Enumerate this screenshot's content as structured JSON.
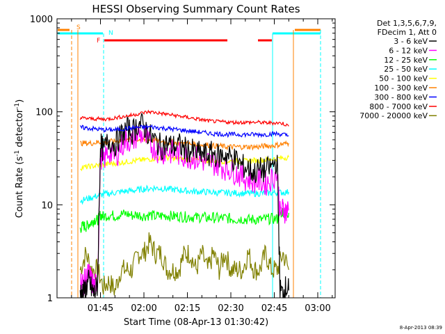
{
  "chart_data": {
    "type": "line",
    "title": "HESSI Observing Summary Count Rates",
    "xlabel": "Start Time (08-Apr-13 01:30:42)",
    "ylabel_main": "Count Rate (s",
    "ylabel_sup1": "-1",
    "ylabel_mid": " detector",
    "ylabel_sup2": "-1",
    "ylabel_end": ")",
    "y_scale": "log",
    "ylim": [
      1,
      1000
    ],
    "xlim_minutes_after_0130": [
      0,
      96
    ],
    "x_ticks": [
      {
        "label": "01:45",
        "minutes": 15
      },
      {
        "label": "02:00",
        "minutes": 30
      },
      {
        "label": "02:15",
        "minutes": 45
      },
      {
        "label": "02:30",
        "minutes": 60
      },
      {
        "label": "02:45",
        "minutes": 75
      },
      {
        "label": "03:00",
        "minutes": 90
      }
    ],
    "y_ticks": [
      {
        "label": "1",
        "value": 1
      },
      {
        "label": "10",
        "value": 10
      },
      {
        "label": "100",
        "value": 100
      },
      {
        "label": "1000",
        "value": 1000
      }
    ],
    "legend_header": [
      "Det 1,3,5,6,7,9,",
      "FDecim 1, Att 0"
    ],
    "legend_placement": "right",
    "series": [
      {
        "name": "3 - 6 keV",
        "color": "#000000",
        "x": [
          8,
          9,
          10,
          11,
          12,
          13,
          14,
          15,
          16,
          18,
          20,
          22,
          24,
          26,
          28,
          30,
          32,
          34,
          36,
          38,
          40,
          42,
          44,
          46,
          48,
          50,
          52,
          54,
          56,
          58,
          60,
          62,
          64,
          66,
          68,
          70,
          72,
          74,
          76,
          77,
          78,
          79,
          80
        ],
        "y": [
          1.2,
          1.1,
          1.3,
          1.5,
          1.2,
          1.1,
          1.4,
          45,
          38,
          50,
          45,
          55,
          65,
          60,
          75,
          70,
          55,
          48,
          42,
          45,
          42,
          44,
          40,
          38,
          36,
          35,
          34,
          36,
          33,
          35,
          32,
          30,
          26,
          25,
          22,
          24,
          23,
          26,
          30,
          1.2,
          1.1,
          1.3,
          1.2
        ]
      },
      {
        "name": "6 - 12 keV",
        "color": "#ff00ff",
        "x": [
          8,
          9,
          10,
          11,
          12,
          13,
          14,
          15,
          16,
          18,
          20,
          22,
          24,
          26,
          28,
          30,
          32,
          34,
          36,
          38,
          40,
          42,
          44,
          46,
          48,
          50,
          52,
          54,
          56,
          58,
          60,
          62,
          64,
          66,
          68,
          70,
          72,
          74,
          76,
          77,
          78,
          79,
          80
        ],
        "y": [
          1.5,
          1.4,
          1.6,
          1.8,
          1.5,
          1.3,
          1.6,
          35,
          30,
          38,
          32,
          42,
          50,
          48,
          58,
          55,
          45,
          40,
          36,
          38,
          36,
          35,
          34,
          33,
          32,
          30,
          29,
          28,
          27,
          25,
          24,
          22,
          20,
          19,
          18,
          18,
          17,
          19,
          22,
          8,
          9,
          8.5,
          9
        ]
      },
      {
        "name": "12 - 25 keV",
        "color": "#00ff00",
        "x": [
          8,
          9,
          10,
          11,
          12,
          13,
          14,
          15,
          16,
          18,
          20,
          22,
          24,
          26,
          28,
          30,
          32,
          34,
          36,
          38,
          40,
          42,
          44,
          46,
          48,
          50,
          52,
          54,
          56,
          58,
          60,
          62,
          64,
          66,
          68,
          70,
          72,
          74,
          76,
          77,
          78,
          79,
          80
        ],
        "y": [
          5.5,
          6,
          5.8,
          6.2,
          6.5,
          7,
          6.8,
          7.8,
          7.5,
          7.8,
          7.6,
          7.9,
          8,
          7.7,
          7.8,
          7.6,
          7.8,
          7.5,
          7.6,
          7.7,
          7.5,
          7.6,
          7.4,
          7.5,
          7.3,
          7.4,
          7.2,
          7.3,
          7.1,
          7.2,
          7.1,
          7,
          7.1,
          6.9,
          7,
          6.9,
          7,
          7.1,
          7,
          8,
          8.5,
          8,
          8.2
        ]
      },
      {
        "name": "25 - 50 keV",
        "color": "#00ffff",
        "x": [
          8,
          10,
          12,
          14,
          16,
          18,
          20,
          22,
          24,
          26,
          28,
          30,
          32,
          34,
          36,
          38,
          40,
          42,
          44,
          46,
          48,
          50,
          52,
          54,
          56,
          58,
          60,
          62,
          64,
          66,
          68,
          70,
          72,
          74,
          76,
          78,
          80
        ],
        "y": [
          11,
          11.5,
          12,
          12.5,
          13,
          13.2,
          13.5,
          13.8,
          14,
          14.2,
          14.5,
          14.8,
          15,
          15.2,
          15,
          14.8,
          14.6,
          14.4,
          14.2,
          14,
          13.9,
          13.8,
          13.7,
          13.6,
          13.5,
          13.5,
          13.4,
          13.4,
          13.3,
          13.3,
          13.2,
          13.3,
          13.3,
          13.4,
          13.5,
          13.6,
          13.7
        ]
      },
      {
        "name": "50 - 100 keV",
        "color": "#ffff00",
        "x": [
          8,
          10,
          12,
          14,
          16,
          18,
          20,
          22,
          24,
          26,
          28,
          30,
          32,
          34,
          36,
          38,
          40,
          42,
          44,
          46,
          48,
          50,
          52,
          54,
          56,
          58,
          60,
          62,
          64,
          66,
          68,
          70,
          72,
          74,
          76,
          78,
          80
        ],
        "y": [
          25,
          25.5,
          26,
          26.5,
          27,
          27.5,
          28,
          28.5,
          29,
          29.5,
          30,
          30.5,
          31,
          31.5,
          32,
          32,
          31.5,
          31,
          31,
          30.5,
          30.5,
          30,
          30,
          30,
          29.5,
          29.5,
          29.5,
          29.5,
          29.5,
          29.5,
          30,
          30,
          30.5,
          31,
          31.5,
          32,
          32.5
        ]
      },
      {
        "name": "100 - 300 keV",
        "color": "#ff8000",
        "x": [
          8,
          10,
          12,
          14,
          16,
          18,
          20,
          22,
          24,
          26,
          28,
          30,
          32,
          34,
          36,
          38,
          40,
          42,
          44,
          46,
          48,
          50,
          52,
          54,
          56,
          58,
          60,
          62,
          64,
          66,
          68,
          70,
          72,
          74,
          76,
          78,
          80
        ],
        "y": [
          46,
          46,
          46,
          47,
          47,
          48,
          48,
          49,
          49,
          50,
          50,
          50,
          50,
          49,
          48,
          47,
          47,
          46,
          46,
          45,
          45,
          44,
          44,
          43,
          43,
          42,
          42,
          42,
          42,
          42,
          42,
          42,
          43,
          43,
          44,
          45,
          46
        ]
      },
      {
        "name": "300 - 800 keV",
        "color": "#0000ff",
        "x": [
          8,
          10,
          12,
          14,
          16,
          18,
          20,
          22,
          24,
          26,
          28,
          30,
          32,
          34,
          36,
          38,
          40,
          42,
          44,
          46,
          48,
          50,
          52,
          54,
          56,
          58,
          60,
          62,
          64,
          66,
          68,
          70,
          72,
          74,
          76,
          78,
          80
        ],
        "y": [
          68,
          67,
          66,
          65,
          64,
          64,
          64,
          65,
          66,
          67,
          68,
          68,
          69,
          68,
          67,
          66,
          65,
          64,
          63,
          62,
          61,
          60,
          59,
          58,
          58,
          57,
          57,
          57,
          57,
          57,
          57,
          57,
          57,
          58,
          58,
          57,
          55
        ]
      },
      {
        "name": "800 - 7000 keV",
        "color": "#ff0000",
        "x": [
          8,
          10,
          12,
          14,
          16,
          18,
          20,
          22,
          24,
          26,
          28,
          30,
          32,
          34,
          36,
          38,
          40,
          42,
          44,
          46,
          48,
          50,
          52,
          54,
          56,
          58,
          60,
          62,
          64,
          66,
          68,
          70,
          72,
          74,
          76,
          78,
          80
        ],
        "y": [
          86,
          85,
          84,
          84,
          83,
          84,
          86,
          88,
          90,
          92,
          95,
          98,
          100,
          98,
          96,
          94,
          92,
          90,
          88,
          86,
          84,
          82,
          80,
          79,
          78,
          78,
          77,
          77,
          77,
          77,
          77,
          77,
          76,
          76,
          76,
          75,
          70
        ]
      },
      {
        "name": "7000 - 20000 keV",
        "color": "#808000",
        "x": [
          8,
          10,
          12,
          14,
          16,
          18,
          20,
          22,
          24,
          26,
          28,
          30,
          32,
          34,
          36,
          38,
          40,
          42,
          44,
          46,
          48,
          50,
          52,
          54,
          56,
          58,
          60,
          62,
          64,
          66,
          68,
          70,
          72,
          74,
          76,
          78,
          80
        ],
        "y": [
          2,
          3,
          2,
          2,
          1.3,
          1.5,
          1.2,
          2,
          2,
          2,
          3,
          3,
          4,
          3,
          3,
          2,
          2,
          2,
          3,
          3,
          2,
          3,
          2,
          3,
          2,
          3,
          2,
          2,
          2,
          3,
          2,
          2,
          3,
          2,
          2,
          3,
          2
        ]
      }
    ],
    "annotations": [
      {
        "label": "S",
        "color": "#ff8000"
      },
      {
        "label": "N",
        "color": "#00ffff"
      },
      {
        "label": "F",
        "color": "#ff0000"
      }
    ]
  },
  "timestamp": "8-Apr-2013 08:39"
}
